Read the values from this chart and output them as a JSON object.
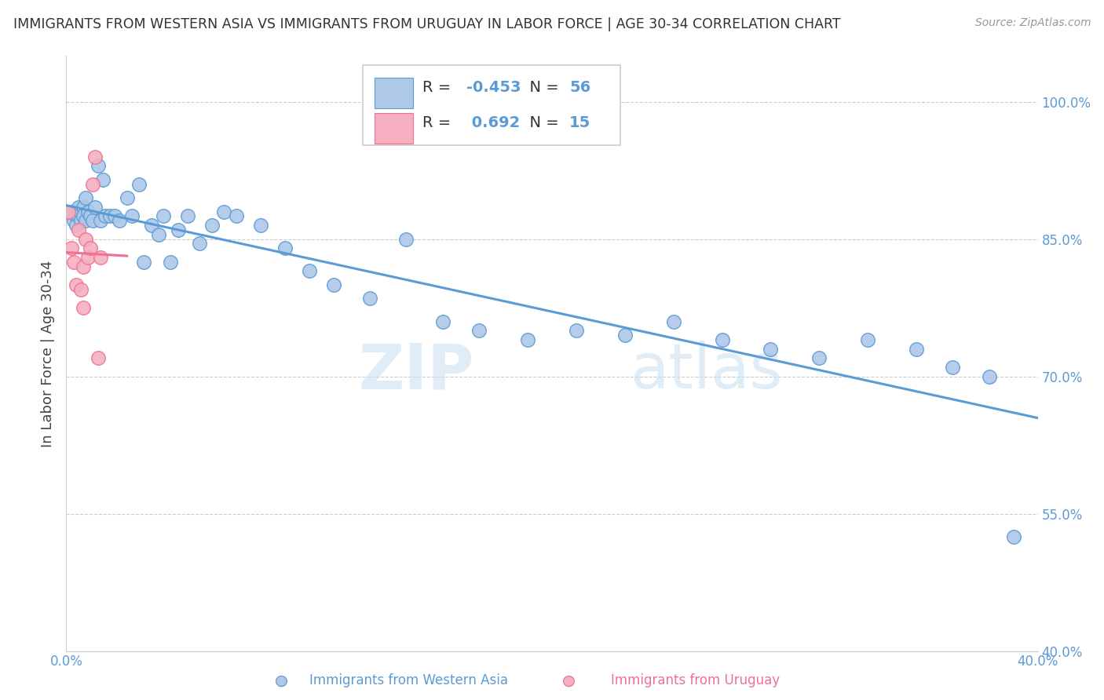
{
  "title": "IMMIGRANTS FROM WESTERN ASIA VS IMMIGRANTS FROM URUGUAY IN LABOR FORCE | AGE 30-34 CORRELATION CHART",
  "source": "Source: ZipAtlas.com",
  "ylabel": "In Labor Force | Age 30-34",
  "xlim": [
    0.0,
    0.4
  ],
  "ylim": [
    0.4,
    1.05
  ],
  "yticks": [
    0.4,
    0.55,
    0.7,
    0.85,
    1.0
  ],
  "ytick_labels": [
    "40.0%",
    "55.0%",
    "70.0%",
    "85.0%",
    "100.0%"
  ],
  "xticks": [
    0.0,
    0.05,
    0.1,
    0.15,
    0.2,
    0.25,
    0.3,
    0.35,
    0.4
  ],
  "xtick_labels": [
    "0.0%",
    "",
    "",
    "",
    "",
    "",
    "",
    "",
    "40.0%"
  ],
  "western_asia_R": -0.453,
  "western_asia_N": 56,
  "uruguay_R": 0.692,
  "uruguay_N": 15,
  "western_asia_color": "#adc8e8",
  "uruguay_color": "#f5afc0",
  "western_asia_line_color": "#5b9bd5",
  "uruguay_line_color": "#f07090",
  "background_color": "#ffffff",
  "grid_color": "#cccccc",
  "watermark_zip": "ZIP",
  "watermark_atlas": "atlas",
  "western_asia_x": [
    0.002,
    0.003,
    0.004,
    0.004,
    0.005,
    0.005,
    0.006,
    0.007,
    0.007,
    0.008,
    0.008,
    0.009,
    0.01,
    0.011,
    0.012,
    0.013,
    0.014,
    0.015,
    0.016,
    0.018,
    0.02,
    0.022,
    0.025,
    0.027,
    0.03,
    0.032,
    0.035,
    0.038,
    0.04,
    0.043,
    0.046,
    0.05,
    0.055,
    0.06,
    0.065,
    0.07,
    0.08,
    0.09,
    0.1,
    0.11,
    0.125,
    0.14,
    0.155,
    0.17,
    0.19,
    0.21,
    0.23,
    0.25,
    0.27,
    0.29,
    0.31,
    0.33,
    0.35,
    0.365,
    0.38,
    0.39
  ],
  "western_asia_y": [
    0.88,
    0.87,
    0.875,
    0.865,
    0.885,
    0.875,
    0.87,
    0.885,
    0.875,
    0.895,
    0.87,
    0.88,
    0.875,
    0.87,
    0.885,
    0.93,
    0.87,
    0.915,
    0.875,
    0.875,
    0.875,
    0.87,
    0.895,
    0.875,
    0.91,
    0.825,
    0.865,
    0.855,
    0.875,
    0.825,
    0.86,
    0.875,
    0.845,
    0.865,
    0.88,
    0.875,
    0.865,
    0.84,
    0.815,
    0.8,
    0.785,
    0.85,
    0.76,
    0.75,
    0.74,
    0.75,
    0.745,
    0.76,
    0.74,
    0.73,
    0.72,
    0.74,
    0.73,
    0.71,
    0.7,
    0.525
  ],
  "uruguay_x": [
    0.001,
    0.002,
    0.003,
    0.004,
    0.005,
    0.006,
    0.007,
    0.007,
    0.008,
    0.009,
    0.01,
    0.011,
    0.012,
    0.013,
    0.014
  ],
  "uruguay_y": [
    0.88,
    0.84,
    0.825,
    0.8,
    0.86,
    0.795,
    0.82,
    0.775,
    0.85,
    0.83,
    0.84,
    0.91,
    0.94,
    0.72,
    0.83
  ]
}
